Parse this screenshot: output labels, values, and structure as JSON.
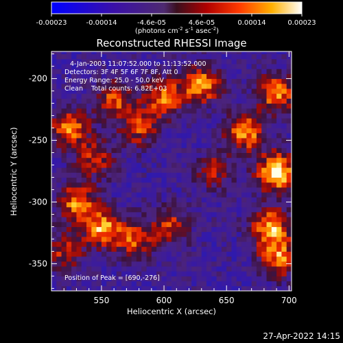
{
  "chart_data": {
    "type": "heatmap",
    "title": "Reconstructed RHESSI Image",
    "xlabel": "Heliocentric X (arcsec)",
    "ylabel": "Heliocentric Y (arcsec)",
    "xlim": [
      510,
      702
    ],
    "ylim": [
      -372,
      -178
    ],
    "x_ticks": [
      550,
      600,
      650,
      700
    ],
    "y_ticks": [
      -200,
      -250,
      -300,
      -350
    ],
    "colorbar": {
      "range": [
        -0.00023,
        0.00023
      ],
      "tick_labels": [
        "-0.00023",
        "-0.00014",
        "-4.6e-05",
        "4.6e-05",
        "0.00014",
        "0.00023"
      ],
      "unit_prefix": "(photons cm",
      "unit_sup1": "-2",
      "unit_mid": " s",
      "unit_sup2": "-1",
      "unit_mid2": " asec",
      "unit_sup3": "-2",
      "unit_suffix": ")"
    },
    "annotations": [
      "4-Jan-2003 11:07:52.000 to 11:13:52.000",
      "Detectors: 3F 4F 5F 6F 7F 8F, Att 0",
      "Energy Range: 25.0 - 50.0 keV",
      "Clean    Total counts: 6.82E+03"
    ],
    "peak_label": "Position of Peak = [690,-276]",
    "hotspots": [
      {
        "x": 690,
        "y": -276,
        "amp": 1.0
      },
      {
        "x": 630,
        "y": -205,
        "amp": 0.75
      },
      {
        "x": 600,
        "y": -215,
        "amp": 0.7
      },
      {
        "x": 560,
        "y": -218,
        "amp": 0.6
      },
      {
        "x": 525,
        "y": -240,
        "amp": 0.7
      },
      {
        "x": 580,
        "y": -240,
        "amp": 0.55
      },
      {
        "x": 545,
        "y": -265,
        "amp": 0.5
      },
      {
        "x": 665,
        "y": -243,
        "amp": 0.8
      },
      {
        "x": 690,
        "y": -212,
        "amp": 0.75
      },
      {
        "x": 685,
        "y": -320,
        "amp": 0.8
      },
      {
        "x": 692,
        "y": -345,
        "amp": 0.7
      },
      {
        "x": 530,
        "y": -300,
        "amp": 0.7
      },
      {
        "x": 550,
        "y": -320,
        "amp": 0.75
      },
      {
        "x": 575,
        "y": -330,
        "amp": 0.6
      },
      {
        "x": 605,
        "y": -320,
        "amp": 0.55
      },
      {
        "x": 640,
        "y": -275,
        "amp": 0.45
      },
      {
        "x": 520,
        "y": -340,
        "amp": 0.5
      }
    ],
    "grid": false
  },
  "timestamp": "27-Apr-2022 14:15"
}
